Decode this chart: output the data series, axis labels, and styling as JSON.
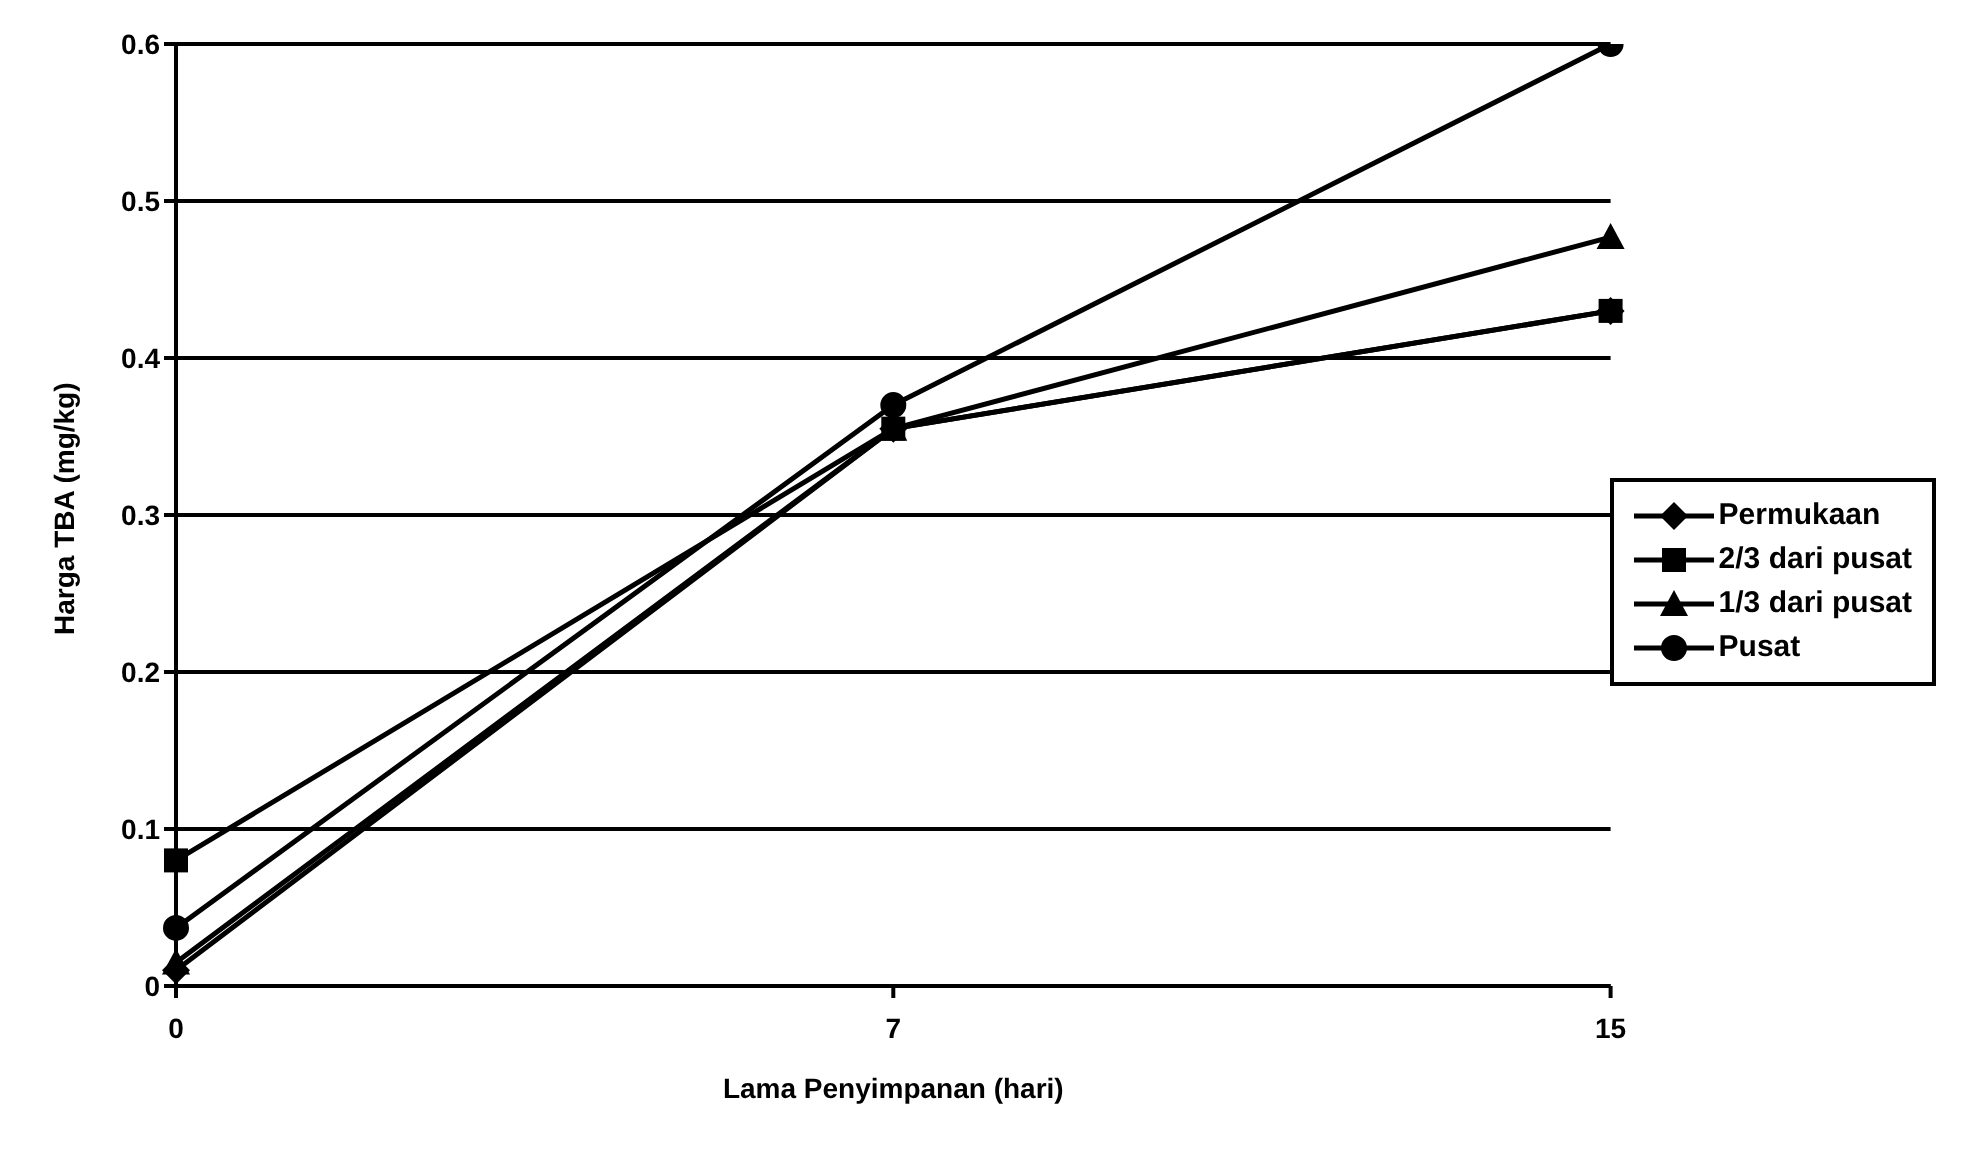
{
  "chart_data": {
    "type": "line",
    "xlabel": "Lama Penyimpanan (hari)",
    "ylabel": "Harga TBA (mg/kg)",
    "categories": [
      "0",
      "7",
      "15"
    ],
    "series": [
      {
        "name": "Permukaan",
        "color": "#000000",
        "marker": "diamond",
        "values": [
          0.01,
          0.355,
          0.43
        ]
      },
      {
        "name": "2/3 dari pusat",
        "color": "#000000",
        "marker": "square",
        "values": [
          0.08,
          0.355,
          0.43
        ]
      },
      {
        "name": "1/3 dari pusat",
        "color": "#000000",
        "marker": "triangle",
        "values": [
          0.015,
          0.355,
          0.477
        ]
      },
      {
        "name": "Pusat",
        "color": "#000000",
        "marker": "circle",
        "values": [
          0.037,
          0.37,
          0.6
        ]
      }
    ],
    "ylim": [
      0,
      0.6
    ],
    "yticks": [
      0,
      0.1,
      0.2,
      0.3,
      0.4,
      0.5,
      0.6
    ],
    "grid": "y",
    "legend": "right",
    "line_style": "solid"
  }
}
